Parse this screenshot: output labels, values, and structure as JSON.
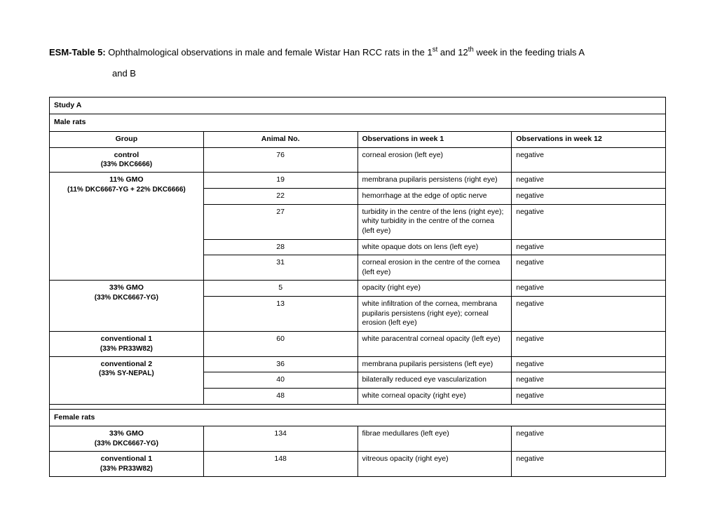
{
  "title": {
    "label": "ESM-Table 5:",
    "line1a": " Ophthalmological observations in male and female Wistar Han RCC rats in the 1",
    "sup1": "st",
    "line1b": " and 12",
    "sup2": "th",
    "line1c": " week in the feeding trials A",
    "line2": "and B"
  },
  "headers": {
    "study": "Study A",
    "male": "Male rats",
    "female": "Female rats",
    "group": "Group",
    "animal": "Animal No.",
    "obs1": "Observations in week 1",
    "obs12": "Observations in week 12"
  },
  "male_groups": [
    {
      "name": "control",
      "sub": "(33% DKC6666)",
      "rows": [
        {
          "animal": "76",
          "obs1": "corneal erosion (left eye)",
          "obs12": "negative"
        }
      ]
    },
    {
      "name": "11% GMO",
      "sub": "(11% DKC6667-YG + 22% DKC6666)",
      "rows": [
        {
          "animal": "19",
          "obs1": "membrana pupilaris persistens (right eye)",
          "obs12": "negative"
        },
        {
          "animal": "22",
          "obs1": "hemorrhage at the edge of optic nerve",
          "obs12": "negative"
        },
        {
          "animal": "27",
          "obs1": "turbidity in the centre of the lens (right eye); whity turbidity in the centre of the cornea (left eye)",
          "obs12": "negative"
        },
        {
          "animal": "28",
          "obs1": "white opaque dots on lens (left eye)",
          "obs12": "negative"
        },
        {
          "animal": "31",
          "obs1": "corneal erosion in the centre of the cornea (left eye)",
          "obs12": "negative"
        }
      ]
    },
    {
      "name": "33% GMO",
      "sub": "(33% DKC6667-YG)",
      "rows": [
        {
          "animal": "5",
          "obs1": "opacity (right eye)",
          "obs12": "negative"
        },
        {
          "animal": "13",
          "obs1": "white infiltration of the cornea, membrana pupilaris persistens (right eye); corneal erosion (left eye)",
          "obs12": "negative"
        }
      ]
    },
    {
      "name": "conventional 1",
      "sub": "(33% PR33W82)",
      "rows": [
        {
          "animal": "60",
          "obs1": "white paracentral corneal opacity (left eye)",
          "obs12": "negative"
        }
      ]
    },
    {
      "name": "conventional 2",
      "sub": "(33% SY-NEPAL)",
      "rows": [
        {
          "animal": "36",
          "obs1": "membrana pupilaris persistens (left eye)",
          "obs12": "negative"
        },
        {
          "animal": "40",
          "obs1": "bilaterally reduced eye vascularization",
          "obs12": "negative"
        },
        {
          "animal": "48",
          "obs1": "white corneal opacity (right eye)",
          "obs12": "negative"
        }
      ]
    }
  ],
  "female_groups": [
    {
      "name": "33% GMO",
      "sub": "(33% DKC6667-YG)",
      "rows": [
        {
          "animal": "134",
          "obs1": "fibrae medullares (left eye)",
          "obs12": "negative"
        }
      ]
    },
    {
      "name": "conventional 1",
      "sub": "(33% PR33W82)",
      "rows": [
        {
          "animal": "148",
          "obs1": "vitreous opacity (right eye)",
          "obs12": "negative"
        }
      ]
    }
  ]
}
